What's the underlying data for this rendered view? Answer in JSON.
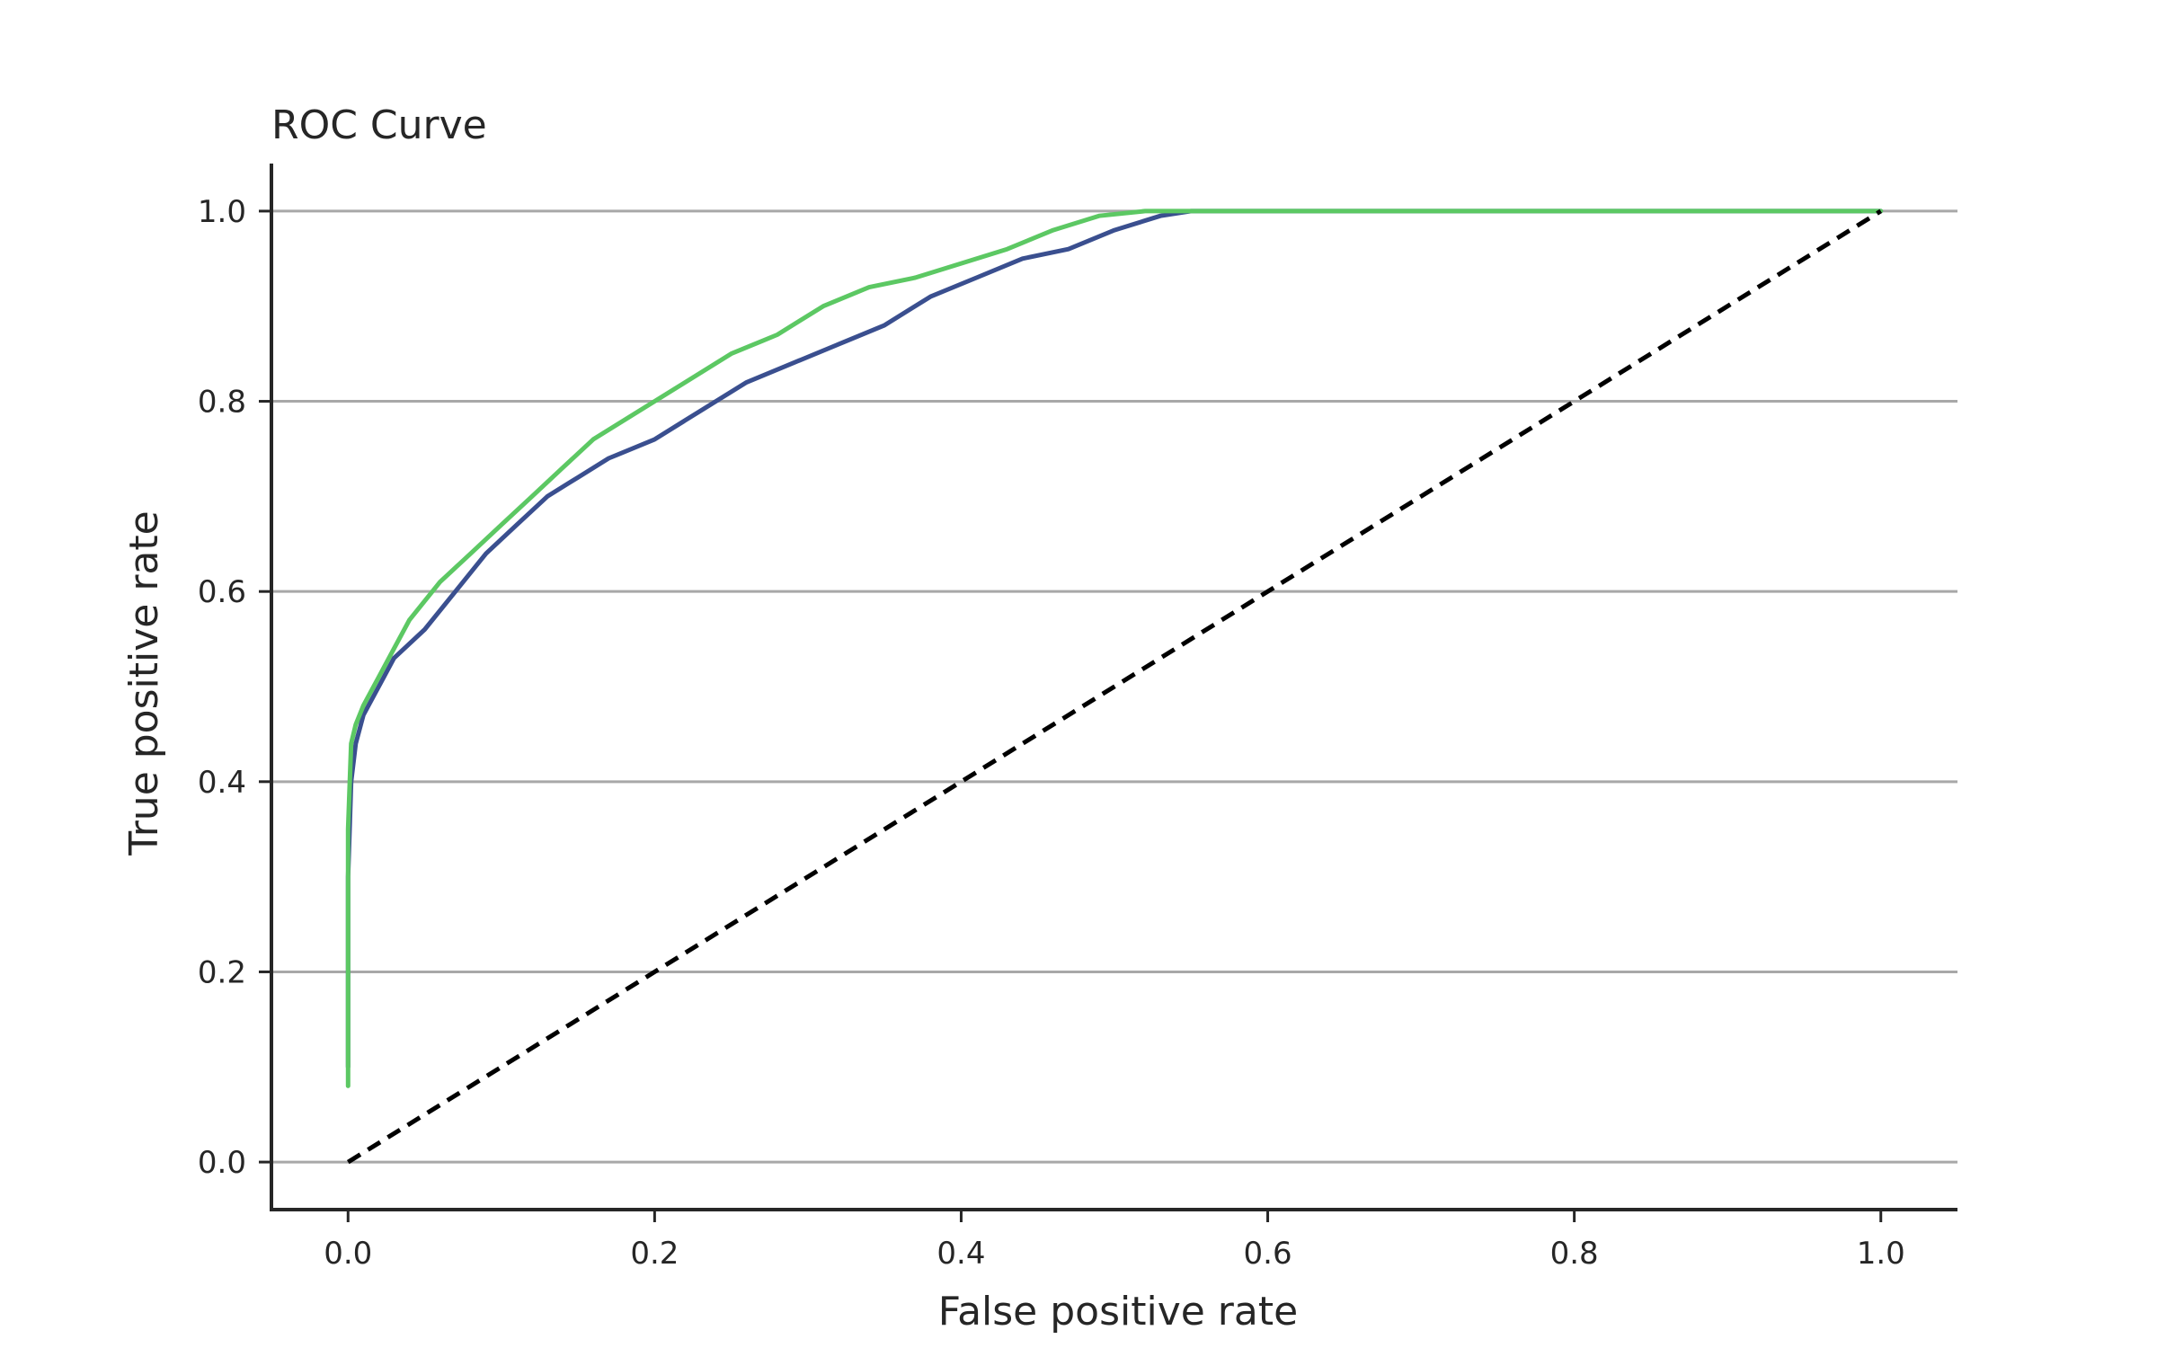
{
  "chart_data": {
    "type": "line",
    "title": "ROC Curve",
    "xlabel": "False positive rate",
    "ylabel": "True positive rate",
    "xlim": [
      -0.05,
      1.05
    ],
    "ylim": [
      -0.05,
      1.05
    ],
    "x_ticks": [
      "0.0",
      "0.2",
      "0.4",
      "0.6",
      "0.8",
      "1.0"
    ],
    "y_ticks": [
      "0.0",
      "0.2",
      "0.4",
      "0.6",
      "0.8",
      "1.0"
    ],
    "grid": "horizontal",
    "legend": "none",
    "series": [
      {
        "color": "#3a4f8f",
        "style": "solid",
        "x": [
          0,
          0,
          0.002,
          0.005,
          0.01,
          0.02,
          0.03,
          0.05,
          0.07,
          0.09,
          0.11,
          0.13,
          0.15,
          0.17,
          0.2,
          0.23,
          0.26,
          0.29,
          0.32,
          0.35,
          0.38,
          0.41,
          0.44,
          0.47,
          0.5,
          0.53,
          0.55,
          0.6,
          0.7,
          0.8,
          0.9,
          1.0
        ],
        "y": [
          0.1,
          0.3,
          0.4,
          0.44,
          0.47,
          0.5,
          0.53,
          0.56,
          0.6,
          0.64,
          0.67,
          0.7,
          0.72,
          0.74,
          0.76,
          0.79,
          0.82,
          0.84,
          0.86,
          0.88,
          0.91,
          0.93,
          0.95,
          0.96,
          0.98,
          0.995,
          1.0,
          1.0,
          1.0,
          1.0,
          1.0,
          1.0
        ]
      },
      {
        "color": "#5cc863",
        "style": "solid",
        "x": [
          0,
          0,
          0.002,
          0.005,
          0.01,
          0.02,
          0.03,
          0.04,
          0.06,
          0.08,
          0.1,
          0.12,
          0.14,
          0.16,
          0.19,
          0.22,
          0.25,
          0.28,
          0.31,
          0.34,
          0.37,
          0.4,
          0.43,
          0.46,
          0.49,
          0.52,
          0.55,
          0.6,
          0.7,
          0.8,
          0.9,
          1.0
        ],
        "y": [
          0.08,
          0.35,
          0.44,
          0.46,
          0.48,
          0.51,
          0.54,
          0.57,
          0.61,
          0.64,
          0.67,
          0.7,
          0.73,
          0.76,
          0.79,
          0.82,
          0.85,
          0.87,
          0.9,
          0.92,
          0.93,
          0.945,
          0.96,
          0.98,
          0.995,
          1.0,
          1.0,
          1.0,
          1.0,
          1.0,
          1.0,
          1.0
        ]
      },
      {
        "color": "#000000",
        "style": "dashed",
        "x": [
          0,
          1
        ],
        "y": [
          0,
          1
        ]
      }
    ]
  }
}
